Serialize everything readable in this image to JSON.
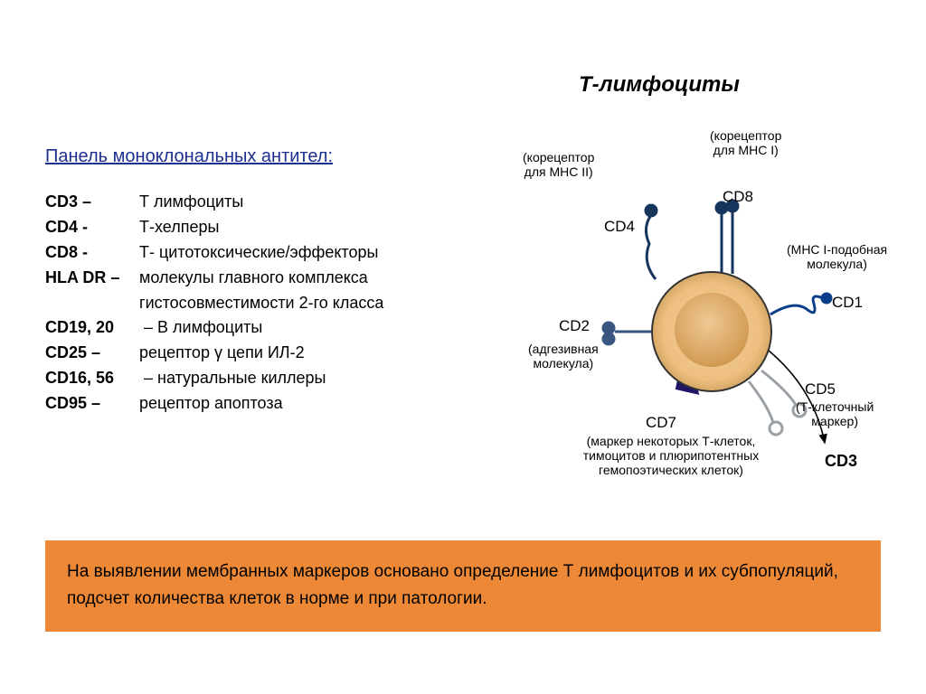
{
  "title": "Т-лимфоциты",
  "panel_header": "Панель моноклональных антител:",
  "list": [
    {
      "marker": "CD3 –",
      "text": "Т лимфоциты"
    },
    {
      "marker": "CD4 -",
      "text": "Т-хелперы"
    },
    {
      "marker": "CD8 -",
      "text": "Т- цитотоксические/эффекторы"
    },
    {
      "marker": "HLA DR –",
      "text": "молекулы главного комплекса"
    },
    {
      "marker": "",
      "text": "гистосовместимости 2-го класса",
      "indent": true
    },
    {
      "marker": "CD19, 20",
      "text": " – В лимфоциты",
      "tight": true
    },
    {
      "marker": "CD25 –",
      "text": "рецептор γ цепи ИЛ-2"
    },
    {
      "marker": "CD16, 56",
      "text": " – натуральные киллеры",
      "tight": true
    },
    {
      "marker": "CD95 –",
      "text": "рецептор апоптоза"
    }
  ],
  "note": "На выявлении мембранных маркеров основано определение Т лимфоцитов и их субпопуляций, подсчет количества клеток в норме и при патологии.",
  "diagram": {
    "cell_border": "#333333",
    "cell_fill_outer": "#b18847",
    "cell_fill_inner": "#f2cf9b",
    "nucleus_fill": "#d39c55",
    "labels": {
      "cd8_code": "CD8",
      "cd8_note_l1": "(корецептор",
      "cd8_note_l2": "для MHC I)",
      "cd4_code": "CD4",
      "cd4_note_l1": "(корецептор",
      "cd4_note_l2": "для MHC II)",
      "cd2_code": "CD2",
      "cd2_note_l1": "(адгезивная",
      "cd2_note_l2": "молекула)",
      "cd7_code": "CD7",
      "cd7_note_l1": "(маркер некоторых Т-клеток,",
      "cd7_note_l2": "тимоцитов и плюрипотентных",
      "cd7_note_l3": "гемопоэтических клеток)",
      "cd5_code": "CD5",
      "cd5_note_l1": "(Т-клеточный",
      "cd5_note_l2": "маркер)",
      "cd1_code": "CD1",
      "cd1_note_l1": "(MHC I-подобная",
      "cd1_note_l2": "молекула)",
      "cd3": "CD3"
    },
    "colors": {
      "cd8": "#17365d",
      "cd4": "#17365d",
      "cd2": "#38567f",
      "cd1": "#0a3f8a",
      "cd5": "#9aa0a6",
      "arrow": "#1f1564",
      "cd3_arrow": "#000000"
    }
  }
}
